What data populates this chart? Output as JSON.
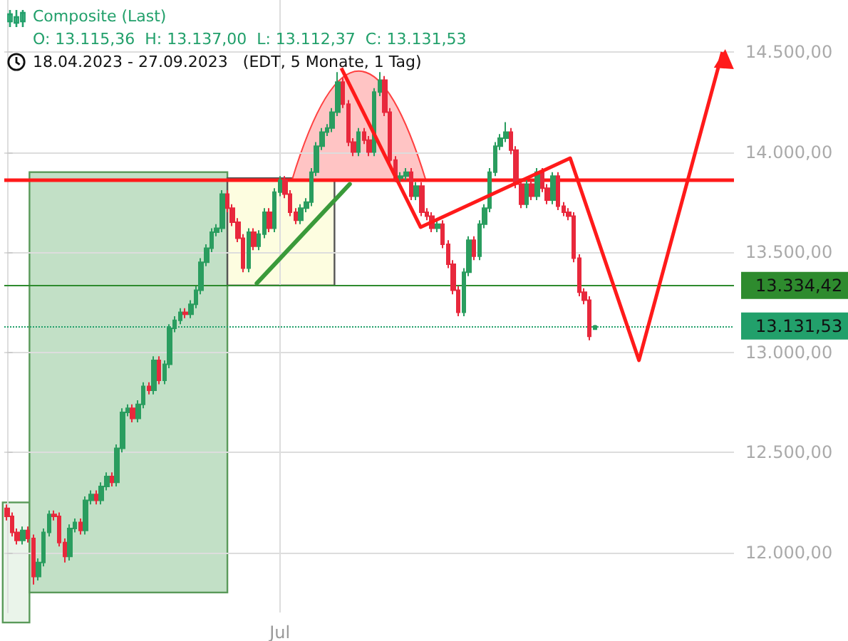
{
  "chart_data": {
    "type": "candlestick",
    "title": "Composite (Last)",
    "subtitle": "O: 13.115,36  H: 13.137,00  L: 13.112,37  C: 13.131,53",
    "annotations": [
      "18.04.2023 - 27.09.2023   (EDT, 5 Monate, 1 Tag)"
    ],
    "categories": [
      null,
      null,
      null,
      null,
      null,
      null,
      null,
      null,
      null,
      null,
      null,
      null,
      null,
      null,
      null,
      null,
      null,
      null,
      null,
      null,
      null,
      null,
      null,
      null,
      null,
      null,
      null,
      null,
      null,
      null,
      null,
      null,
      null,
      null,
      null,
      null,
      null,
      null,
      null,
      null,
      null,
      null,
      null,
      null,
      null,
      null,
      null,
      null,
      null,
      null,
      null,
      null,
      "Jul",
      null,
      null,
      null,
      null,
      null,
      null,
      null,
      null,
      null,
      null,
      null,
      null,
      null,
      null,
      null,
      null,
      null,
      null,
      null,
      null,
      null,
      null,
      null,
      null,
      null,
      null,
      null,
      null,
      null,
      null,
      null,
      null,
      null,
      null,
      null,
      null,
      null,
      null,
      null,
      null,
      null,
      null,
      null,
      null,
      null,
      null,
      null,
      null,
      null,
      null,
      null,
      null,
      null,
      null,
      null,
      null,
      null,
      null,
      null,
      null,
      null,
      null,
      null,
      null,
      null,
      null,
      null,
      null,
      null,
      null,
      null,
      null,
      null,
      null,
      null,
      null,
      null,
      null,
      null,
      null,
      null,
      null,
      null,
      null,
      null,
      null
    ],
    "ohlc": [
      [
        12220,
        12240,
        12160,
        12180
      ],
      [
        12180,
        12200,
        12080,
        12100
      ],
      [
        12100,
        12120,
        12040,
        12060
      ],
      [
        12060,
        12130,
        12040,
        12110
      ],
      [
        12110,
        12130,
        12050,
        12070
      ],
      [
        12070,
        12090,
        11840,
        11880
      ],
      [
        11880,
        11970,
        11860,
        11950
      ],
      [
        11950,
        12120,
        11930,
        12100
      ],
      [
        12100,
        12210,
        12080,
        12190
      ],
      [
        12190,
        12210,
        12160,
        12180
      ],
      [
        12180,
        12200,
        12030,
        12050
      ],
      [
        12050,
        12070,
        11950,
        11980
      ],
      [
        11980,
        12140,
        11960,
        12120
      ],
      [
        12120,
        12170,
        12100,
        12150
      ],
      [
        12150,
        12170,
        12090,
        12110
      ],
      [
        12110,
        12280,
        12090,
        12260
      ],
      [
        12260,
        12310,
        12240,
        12290
      ],
      [
        12290,
        12310,
        12240,
        12260
      ],
      [
        12260,
        12350,
        12240,
        12330
      ],
      [
        12330,
        12400,
        12310,
        12380
      ],
      [
        12380,
        12400,
        12330,
        12350
      ],
      [
        12350,
        12540,
        12330,
        12520
      ],
      [
        12520,
        12720,
        12500,
        12700
      ],
      [
        12700,
        12740,
        12680,
        12720
      ],
      [
        12720,
        12740,
        12650,
        12670
      ],
      [
        12670,
        12760,
        12650,
        12740
      ],
      [
        12740,
        12850,
        12720,
        12830
      ],
      [
        12830,
        12850,
        12790,
        12810
      ],
      [
        12810,
        12980,
        12790,
        12960
      ],
      [
        12960,
        12980,
        12840,
        12860
      ],
      [
        12860,
        12960,
        12840,
        12940
      ],
      [
        12940,
        13140,
        12920,
        13120
      ],
      [
        13120,
        13180,
        13100,
        13160
      ],
      [
        13160,
        13220,
        13140,
        13200
      ],
      [
        13200,
        13220,
        13170,
        13190
      ],
      [
        13190,
        13260,
        13170,
        13240
      ],
      [
        13240,
        13330,
        13220,
        13310
      ],
      [
        13310,
        13470,
        13290,
        13450
      ],
      [
        13450,
        13540,
        13430,
        13520
      ],
      [
        13520,
        13620,
        13500,
        13600
      ],
      [
        13600,
        13640,
        13580,
        13620
      ],
      [
        13620,
        13810,
        13600,
        13790
      ],
      [
        13790,
        13810,
        13700,
        13720
      ],
      [
        13720,
        13740,
        13630,
        13650
      ],
      [
        13650,
        13670,
        13550,
        13570
      ],
      [
        13570,
        13590,
        13400,
        13420
      ],
      [
        13420,
        13620,
        13400,
        13600
      ],
      [
        13600,
        13620,
        13510,
        13530
      ],
      [
        13530,
        13610,
        13510,
        13590
      ],
      [
        13590,
        13720,
        13570,
        13700
      ],
      [
        13700,
        13720,
        13600,
        13620
      ],
      [
        13620,
        13820,
        13600,
        13800
      ],
      [
        13800,
        13880,
        13780,
        13860
      ],
      [
        13860,
        13880,
        13770,
        13790
      ],
      [
        13790,
        13810,
        13680,
        13700
      ],
      [
        13700,
        13720,
        13640,
        13660
      ],
      [
        13660,
        13740,
        13640,
        13720
      ],
      [
        13720,
        13770,
        13700,
        13750
      ],
      [
        13750,
        13920,
        13730,
        13900
      ],
      [
        13900,
        14050,
        13880,
        14030
      ],
      [
        14030,
        14120,
        14010,
        14100
      ],
      [
        14100,
        14140,
        14080,
        14120
      ],
      [
        14120,
        14220,
        14100,
        14200
      ],
      [
        14200,
        14400,
        14180,
        14350
      ],
      [
        14350,
        14370,
        14220,
        14240
      ],
      [
        14240,
        14260,
        14030,
        14050
      ],
      [
        14050,
        14070,
        13980,
        14000
      ],
      [
        14000,
        14120,
        13980,
        14100
      ],
      [
        14100,
        14120,
        14040,
        14060
      ],
      [
        14060,
        14080,
        13980,
        14000
      ],
      [
        14000,
        14320,
        13980,
        14300
      ],
      [
        14300,
        14400,
        14280,
        14360
      ],
      [
        14360,
        14380,
        14180,
        14200
      ],
      [
        14200,
        14220,
        13940,
        13960
      ],
      [
        13960,
        13980,
        13850,
        13870
      ],
      [
        13870,
        13900,
        13850,
        13880
      ],
      [
        13880,
        13920,
        13860,
        13900
      ],
      [
        13900,
        13920,
        13760,
        13780
      ],
      [
        13780,
        13850,
        13760,
        13830
      ],
      [
        13830,
        13850,
        13680,
        13700
      ],
      [
        13700,
        13720,
        13660,
        13680
      ],
      [
        13680,
        13700,
        13600,
        13620
      ],
      [
        13620,
        13660,
        13600,
        13640
      ],
      [
        13640,
        13660,
        13520,
        13540
      ],
      [
        13540,
        13560,
        13420,
        13440
      ],
      [
        13440,
        13460,
        13290,
        13310
      ],
      [
        13310,
        13330,
        13180,
        13200
      ],
      [
        13200,
        13420,
        13180,
        13400
      ],
      [
        13400,
        13580,
        13380,
        13560
      ],
      [
        13560,
        13580,
        13460,
        13480
      ],
      [
        13480,
        13660,
        13460,
        13640
      ],
      [
        13640,
        13740,
        13620,
        13720
      ],
      [
        13720,
        13920,
        13700,
        13900
      ],
      [
        13900,
        14050,
        13880,
        14030
      ],
      [
        14030,
        14090,
        14010,
        14070
      ],
      [
        14070,
        14150,
        14050,
        14100
      ],
      [
        14100,
        14120,
        13990,
        14010
      ],
      [
        14010,
        14030,
        13820,
        13840
      ],
      [
        13840,
        13860,
        13720,
        13740
      ],
      [
        13740,
        13860,
        13720,
        13840
      ],
      [
        13840,
        13860,
        13760,
        13780
      ],
      [
        13780,
        13920,
        13760,
        13900
      ],
      [
        13900,
        13920,
        13800,
        13820
      ],
      [
        13820,
        13840,
        13740,
        13760
      ],
      [
        13760,
        13900,
        13740,
        13880
      ],
      [
        13880,
        13900,
        13710,
        13730
      ],
      [
        13730,
        13750,
        13680,
        13700
      ],
      [
        13700,
        13720,
        13660,
        13680
      ],
      [
        13680,
        13700,
        13450,
        13470
      ],
      [
        13470,
        13490,
        13280,
        13300
      ],
      [
        13300,
        13320,
        13240,
        13260
      ],
      [
        13260,
        13280,
        13060,
        13080
      ],
      [
        13115.36,
        13137,
        13112.37,
        13131.53
      ],
      null,
      null,
      null,
      null,
      null,
      null,
      null,
      null,
      null,
      null,
      null,
      null,
      null,
      null,
      null,
      null,
      null,
      null,
      null,
      null,
      null,
      null,
      null,
      null,
      null,
      null
    ],
    "colors": [
      "#e8283c",
      "#e8283c",
      "#e8283c",
      "#2a9d5f",
      "#e8283c",
      "#e8283c",
      "#2a9d5f",
      "#2a9d5f",
      "#2a9d5f",
      "#e8283c",
      "#e8283c",
      "#e8283c",
      "#2a9d5f",
      "#2a9d5f",
      "#e8283c",
      "#2a9d5f",
      "#2a9d5f",
      "#e8283c",
      "#2a9d5f",
      "#2a9d5f",
      "#e8283c",
      "#2a9d5f",
      "#2a9d5f",
      "#2a9d5f",
      "#e8283c",
      "#2a9d5f",
      "#2a9d5f",
      "#e8283c",
      "#2a9d5f",
      "#e8283c",
      "#2a9d5f",
      "#2a9d5f",
      "#2a9d5f",
      "#2a9d5f",
      "#e8283c",
      "#2a9d5f",
      "#2a9d5f",
      "#2a9d5f",
      "#2a9d5f",
      "#2a9d5f",
      "#2a9d5f",
      "#2a9d5f",
      "#e8283c",
      "#e8283c",
      "#e8283c",
      "#e8283c",
      "#2a9d5f",
      "#e8283c",
      "#2a9d5f",
      "#2a9d5f",
      "#e8283c",
      "#2a9d5f",
      "#2a9d5f",
      "#e8283c",
      "#e8283c",
      "#e8283c",
      "#2a9d5f",
      "#2a9d5f",
      "#2a9d5f",
      "#2a9d5f",
      "#2a9d5f",
      "#2a9d5f",
      "#2a9d5f",
      "#2a9d5f",
      "#e8283c",
      "#e8283c",
      "#e8283c",
      "#2a9d5f",
      "#e8283c",
      "#e8283c",
      "#2a9d5f",
      "#2a9d5f",
      "#e8283c",
      "#e8283c",
      "#e8283c",
      "#2a9d5f",
      "#2a9d5f",
      "#e8283c",
      "#2a9d5f",
      "#e8283c",
      "#e8283c",
      "#e8283c",
      "#2a9d5f",
      "#e8283c",
      "#e8283c",
      "#e8283c",
      "#e8283c",
      "#2a9d5f",
      "#2a9d5f",
      "#e8283c",
      "#2a9d5f",
      "#2a9d5f",
      "#2a9d5f",
      "#2a9d5f",
      "#2a9d5f",
      "#2a9d5f",
      "#e8283c",
      "#e8283c",
      "#e8283c",
      "#2a9d5f",
      "#e8283c",
      "#2a9d5f",
      "#e8283c",
      "#e8283c",
      "#2a9d5f",
      "#e8283c",
      "#e8283c",
      "#e8283c",
      "#e8283c",
      "#e8283c",
      "#e8283c",
      "#e8283c",
      "#2a9d5f",
      null,
      null,
      null,
      null,
      null,
      null,
      null,
      null,
      null,
      null,
      null,
      null,
      null,
      null,
      null,
      null,
      null,
      null,
      null,
      null,
      null,
      null,
      null,
      null,
      null,
      null
    ],
    "ref_lines": [
      {
        "axis": "y",
        "value": 13860,
        "color": "#ff1a1a",
        "line_style": "solid"
      },
      {
        "axis": "y",
        "value": 13334.42,
        "label": "13.334,42",
        "color": "#2e8b2e",
        "line_style": "solid"
      },
      {
        "axis": "y",
        "value": 13131.53,
        "label": "13.131,53",
        "color": "#22a06b",
        "line_style": "dotted"
      }
    ],
    "ylim": [
      11700,
      14760
    ],
    "yticks": [
      {
        "value": 12000,
        "label": "12.000,00"
      },
      {
        "value": 12500,
        "label": "12.500,00"
      },
      {
        "value": 13000,
        "label": "13.000,00"
      },
      {
        "value": 13500,
        "label": "13.500,00"
      },
      {
        "value": 14000,
        "label": "14.000,00"
      },
      {
        "value": 14500,
        "label": "14.500,00"
      }
    ],
    "grid": true
  }
}
